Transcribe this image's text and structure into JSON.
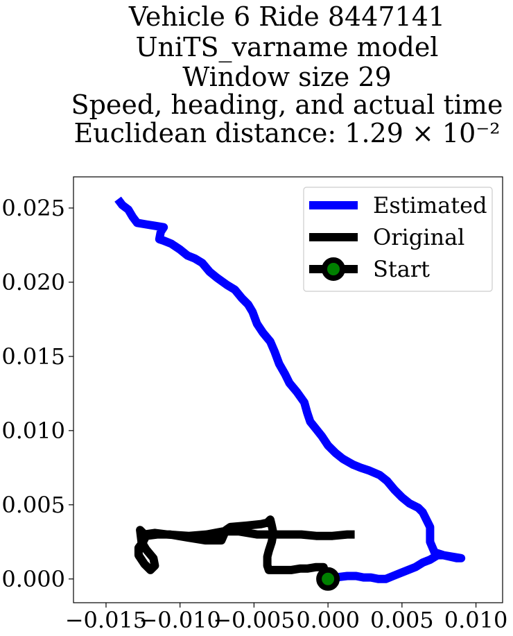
{
  "chart_data": {
    "type": "line",
    "title_lines": [
      "Vehicle 6 Ride 8447141",
      "UniTS_varname model",
      "Window size 29",
      "Speed, heading, and actual time",
      "Euclidean distance: 1.29 × 10⁻²"
    ],
    "xlim": [
      -0.0172,
      0.0118
    ],
    "ylim": [
      -0.0016,
      0.0271
    ],
    "x_ticks": [
      -0.015,
      -0.01,
      -0.005,
      0.0,
      0.005,
      0.01
    ],
    "x_tick_labels": [
      "−0.015",
      "−0.010",
      "−0.005",
      "0.000",
      "0.005",
      "0.010"
    ],
    "y_ticks": [
      0.0,
      0.005,
      0.01,
      0.015,
      0.02,
      0.025
    ],
    "y_tick_labels": [
      "0.000",
      "0.005",
      "0.010",
      "0.015",
      "0.020",
      "0.025"
    ],
    "legend_position": "top-right",
    "grid": false,
    "series": [
      {
        "name": "Estimated",
        "color": "#0000ff",
        "points": [
          [
            0.0,
            0.0
          ],
          [
            0.0005,
            0.0001
          ],
          [
            0.0013,
            0.0002
          ],
          [
            0.0019,
            0.0002
          ],
          [
            0.0024,
            0.0001
          ],
          [
            0.0029,
            0.0001
          ],
          [
            0.0034,
            0.0
          ],
          [
            0.0039,
            0.0
          ],
          [
            0.0044,
            0.0002
          ],
          [
            0.0049,
            0.0004
          ],
          [
            0.0054,
            0.0006
          ],
          [
            0.0059,
            0.0008
          ],
          [
            0.0064,
            0.0011
          ],
          [
            0.0069,
            0.0013
          ],
          [
            0.0074,
            0.0016
          ],
          [
            0.0078,
            0.0016
          ],
          [
            0.0087,
            0.0014
          ],
          [
            0.009,
            0.0014
          ],
          [
            0.0078,
            0.0016
          ],
          [
            0.0072,
            0.0018
          ],
          [
            0.0069,
            0.0025
          ],
          [
            0.0069,
            0.0031
          ],
          [
            0.0069,
            0.0035
          ],
          [
            0.0067,
            0.0039
          ],
          [
            0.0064,
            0.0045
          ],
          [
            0.0061,
            0.0048
          ],
          [
            0.0055,
            0.0051
          ],
          [
            0.005,
            0.0055
          ],
          [
            0.0045,
            0.006
          ],
          [
            0.004,
            0.0066
          ],
          [
            0.0035,
            0.007
          ],
          [
            0.0028,
            0.0073
          ],
          [
            0.0022,
            0.0075
          ],
          [
            0.0017,
            0.0077
          ],
          [
            0.001,
            0.0081
          ],
          [
            0.0005,
            0.0085
          ],
          [
            0.0,
            0.009
          ],
          [
            -0.0004,
            0.0096
          ],
          [
            -0.0008,
            0.0101
          ],
          [
            -0.0012,
            0.0106
          ],
          [
            -0.0014,
            0.0112
          ],
          [
            -0.0016,
            0.0119
          ],
          [
            -0.0021,
            0.0126
          ],
          [
            -0.0026,
            0.0132
          ],
          [
            -0.0029,
            0.0138
          ],
          [
            -0.0033,
            0.0145
          ],
          [
            -0.0036,
            0.0153
          ],
          [
            -0.0039,
            0.016
          ],
          [
            -0.0044,
            0.0166
          ],
          [
            -0.0048,
            0.0172
          ],
          [
            -0.0051,
            0.018
          ],
          [
            -0.0054,
            0.0185
          ],
          [
            -0.0058,
            0.0189
          ],
          [
            -0.0063,
            0.0195
          ],
          [
            -0.0068,
            0.0198
          ],
          [
            -0.0075,
            0.0203
          ],
          [
            -0.008,
            0.0207
          ],
          [
            -0.0085,
            0.0213
          ],
          [
            -0.009,
            0.0216
          ],
          [
            -0.0095,
            0.0218
          ],
          [
            -0.01,
            0.0222
          ],
          [
            -0.0106,
            0.0226
          ],
          [
            -0.0111,
            0.0228
          ],
          [
            -0.0114,
            0.0229
          ],
          [
            -0.0113,
            0.0234
          ],
          [
            -0.0111,
            0.0237
          ],
          [
            -0.0117,
            0.0238
          ],
          [
            -0.0123,
            0.0239
          ],
          [
            -0.0129,
            0.024
          ],
          [
            -0.0132,
            0.0244
          ],
          [
            -0.0135,
            0.0249
          ],
          [
            -0.0139,
            0.0252
          ],
          [
            -0.0142,
            0.0256
          ]
        ]
      },
      {
        "name": "Original",
        "color": "#000000",
        "points": [
          [
            0.0,
            0.0
          ],
          [
            -0.0002,
            0.0004
          ],
          [
            -0.0003,
            0.0008
          ],
          [
            -0.0008,
            0.0008
          ],
          [
            -0.0014,
            0.0007
          ],
          [
            -0.0019,
            0.0007
          ],
          [
            -0.0025,
            0.0006
          ],
          [
            -0.0031,
            0.0006
          ],
          [
            -0.0036,
            0.0006
          ],
          [
            -0.004,
            0.0006
          ],
          [
            -0.0041,
            0.0009
          ],
          [
            -0.0041,
            0.0015
          ],
          [
            -0.004,
            0.0019
          ],
          [
            -0.0038,
            0.0025
          ],
          [
            -0.0037,
            0.0031
          ],
          [
            -0.0038,
            0.0036
          ],
          [
            -0.0039,
            0.004
          ],
          [
            -0.0041,
            0.0038
          ],
          [
            -0.0045,
            0.0037
          ],
          [
            -0.0055,
            0.0036
          ],
          [
            -0.0066,
            0.0035
          ],
          [
            -0.0069,
            0.0033
          ],
          [
            -0.0072,
            0.0026
          ],
          [
            -0.0083,
            0.0026
          ],
          [
            -0.0095,
            0.0028
          ],
          [
            -0.0107,
            0.003
          ],
          [
            -0.0115,
            0.003
          ],
          [
            -0.0123,
            0.0029
          ],
          [
            -0.0125,
            0.0025
          ],
          [
            -0.0128,
            0.0021
          ],
          [
            -0.0128,
            0.0016
          ],
          [
            -0.0124,
            0.001
          ],
          [
            -0.012,
            0.0006
          ],
          [
            -0.0117,
            0.0009
          ],
          [
            -0.0118,
            0.0014
          ],
          [
            -0.0123,
            0.002
          ],
          [
            -0.0126,
            0.0025
          ],
          [
            -0.0127,
            0.0033
          ],
          [
            -0.0124,
            0.003
          ],
          [
            -0.0117,
            0.0031
          ],
          [
            -0.0109,
            0.003
          ],
          [
            -0.0094,
            0.0029
          ],
          [
            -0.0082,
            0.003
          ],
          [
            -0.0071,
            0.0032
          ],
          [
            -0.006,
            0.0032
          ],
          [
            -0.0048,
            0.003
          ],
          [
            -0.004,
            0.003
          ],
          [
            -0.003,
            0.003
          ],
          [
            -0.0018,
            0.003
          ],
          [
            -0.0008,
            0.0029
          ],
          [
            0.0003,
            0.0029
          ],
          [
            0.0013,
            0.003
          ],
          [
            0.0018,
            0.003
          ]
        ]
      }
    ],
    "start_marker": {
      "name": "Start",
      "point": [
        0.0,
        0.0
      ],
      "fill_color": "#008000",
      "edge_color": "#000000"
    }
  }
}
